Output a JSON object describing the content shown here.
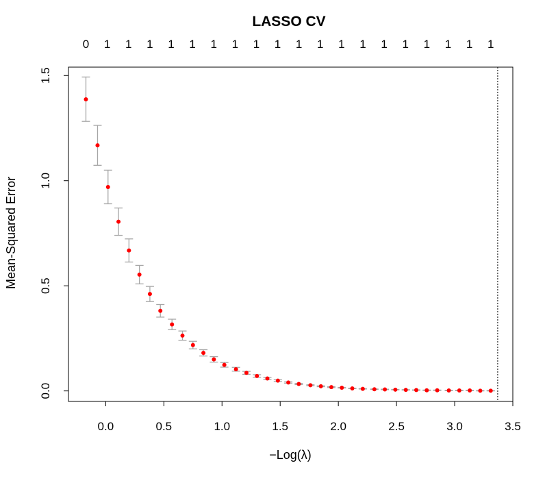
{
  "chart_data": {
    "type": "scatter",
    "title": "LASSO CV",
    "xlabel": "−Log(λ)",
    "ylabel": "Mean-Squared Error",
    "xlim": [
      -0.32,
      3.5
    ],
    "ylim": [
      -0.05,
      1.54
    ],
    "x_ticks": [
      0.0,
      0.5,
      1.0,
      1.5,
      2.0,
      2.5,
      3.0,
      3.5
    ],
    "x_tick_labels": [
      "0.0",
      "0.5",
      "1.0",
      "1.5",
      "2.0",
      "2.5",
      "3.0",
      "3.5"
    ],
    "y_ticks": [
      0.0,
      0.5,
      1.0,
      1.5
    ],
    "y_tick_labels": [
      "0.0",
      "0.5",
      "1.0",
      "1.5"
    ],
    "top_axis_labels": [
      "0",
      "1",
      "1",
      "1",
      "1",
      "1",
      "1",
      "1",
      "1",
      "1",
      "1",
      "1",
      "1",
      "1",
      "1",
      "1",
      "1",
      "1",
      "1",
      "1"
    ],
    "vline_x": 3.37,
    "x": [
      -0.17,
      -0.07,
      0.02,
      0.11,
      0.2,
      0.29,
      0.38,
      0.47,
      0.57,
      0.66,
      0.75,
      0.84,
      0.93,
      1.02,
      1.12,
      1.21,
      1.3,
      1.39,
      1.48,
      1.57,
      1.66,
      1.76,
      1.85,
      1.94,
      2.03,
      2.12,
      2.21,
      2.31,
      2.4,
      2.49,
      2.58,
      2.67,
      2.76,
      2.85,
      2.95,
      3.04,
      3.13,
      3.22,
      3.31
    ],
    "y": [
      1.387,
      1.168,
      0.97,
      0.805,
      0.668,
      0.553,
      0.461,
      0.381,
      0.316,
      0.263,
      0.218,
      0.181,
      0.15,
      0.124,
      0.103,
      0.086,
      0.071,
      0.059,
      0.049,
      0.04,
      0.033,
      0.027,
      0.022,
      0.018,
      0.015,
      0.012,
      0.01,
      0.008,
      0.007,
      0.006,
      0.005,
      0.004,
      0.003,
      0.003,
      0.002,
      0.002,
      0.002,
      0.001,
      0.001
    ],
    "y_upper": [
      1.493,
      1.263,
      1.05,
      0.87,
      0.723,
      0.597,
      0.497,
      0.411,
      0.341,
      0.285,
      0.236,
      0.196,
      0.163,
      0.135,
      0.112,
      0.093,
      0.077,
      0.064,
      0.053,
      0.043,
      0.036,
      0.029,
      0.024,
      0.02,
      0.016,
      0.013,
      0.011,
      0.009,
      0.008,
      0.007,
      0.006,
      0.005,
      0.004,
      0.004,
      0.003,
      0.003,
      0.003,
      0.002,
      0.002
    ],
    "y_lower": [
      1.282,
      1.073,
      0.89,
      0.74,
      0.613,
      0.509,
      0.425,
      0.351,
      0.291,
      0.241,
      0.2,
      0.166,
      0.137,
      0.113,
      0.094,
      0.079,
      0.065,
      0.054,
      0.045,
      0.037,
      0.03,
      0.025,
      0.02,
      0.016,
      0.014,
      0.011,
      0.009,
      0.007,
      0.006,
      0.005,
      0.004,
      0.003,
      0.002,
      0.002,
      0.001,
      0.001,
      0.001,
      0.0,
      0.0
    ],
    "point_color": "#ff0000",
    "errorbar_color": "#a6a6a6",
    "grid": false
  }
}
